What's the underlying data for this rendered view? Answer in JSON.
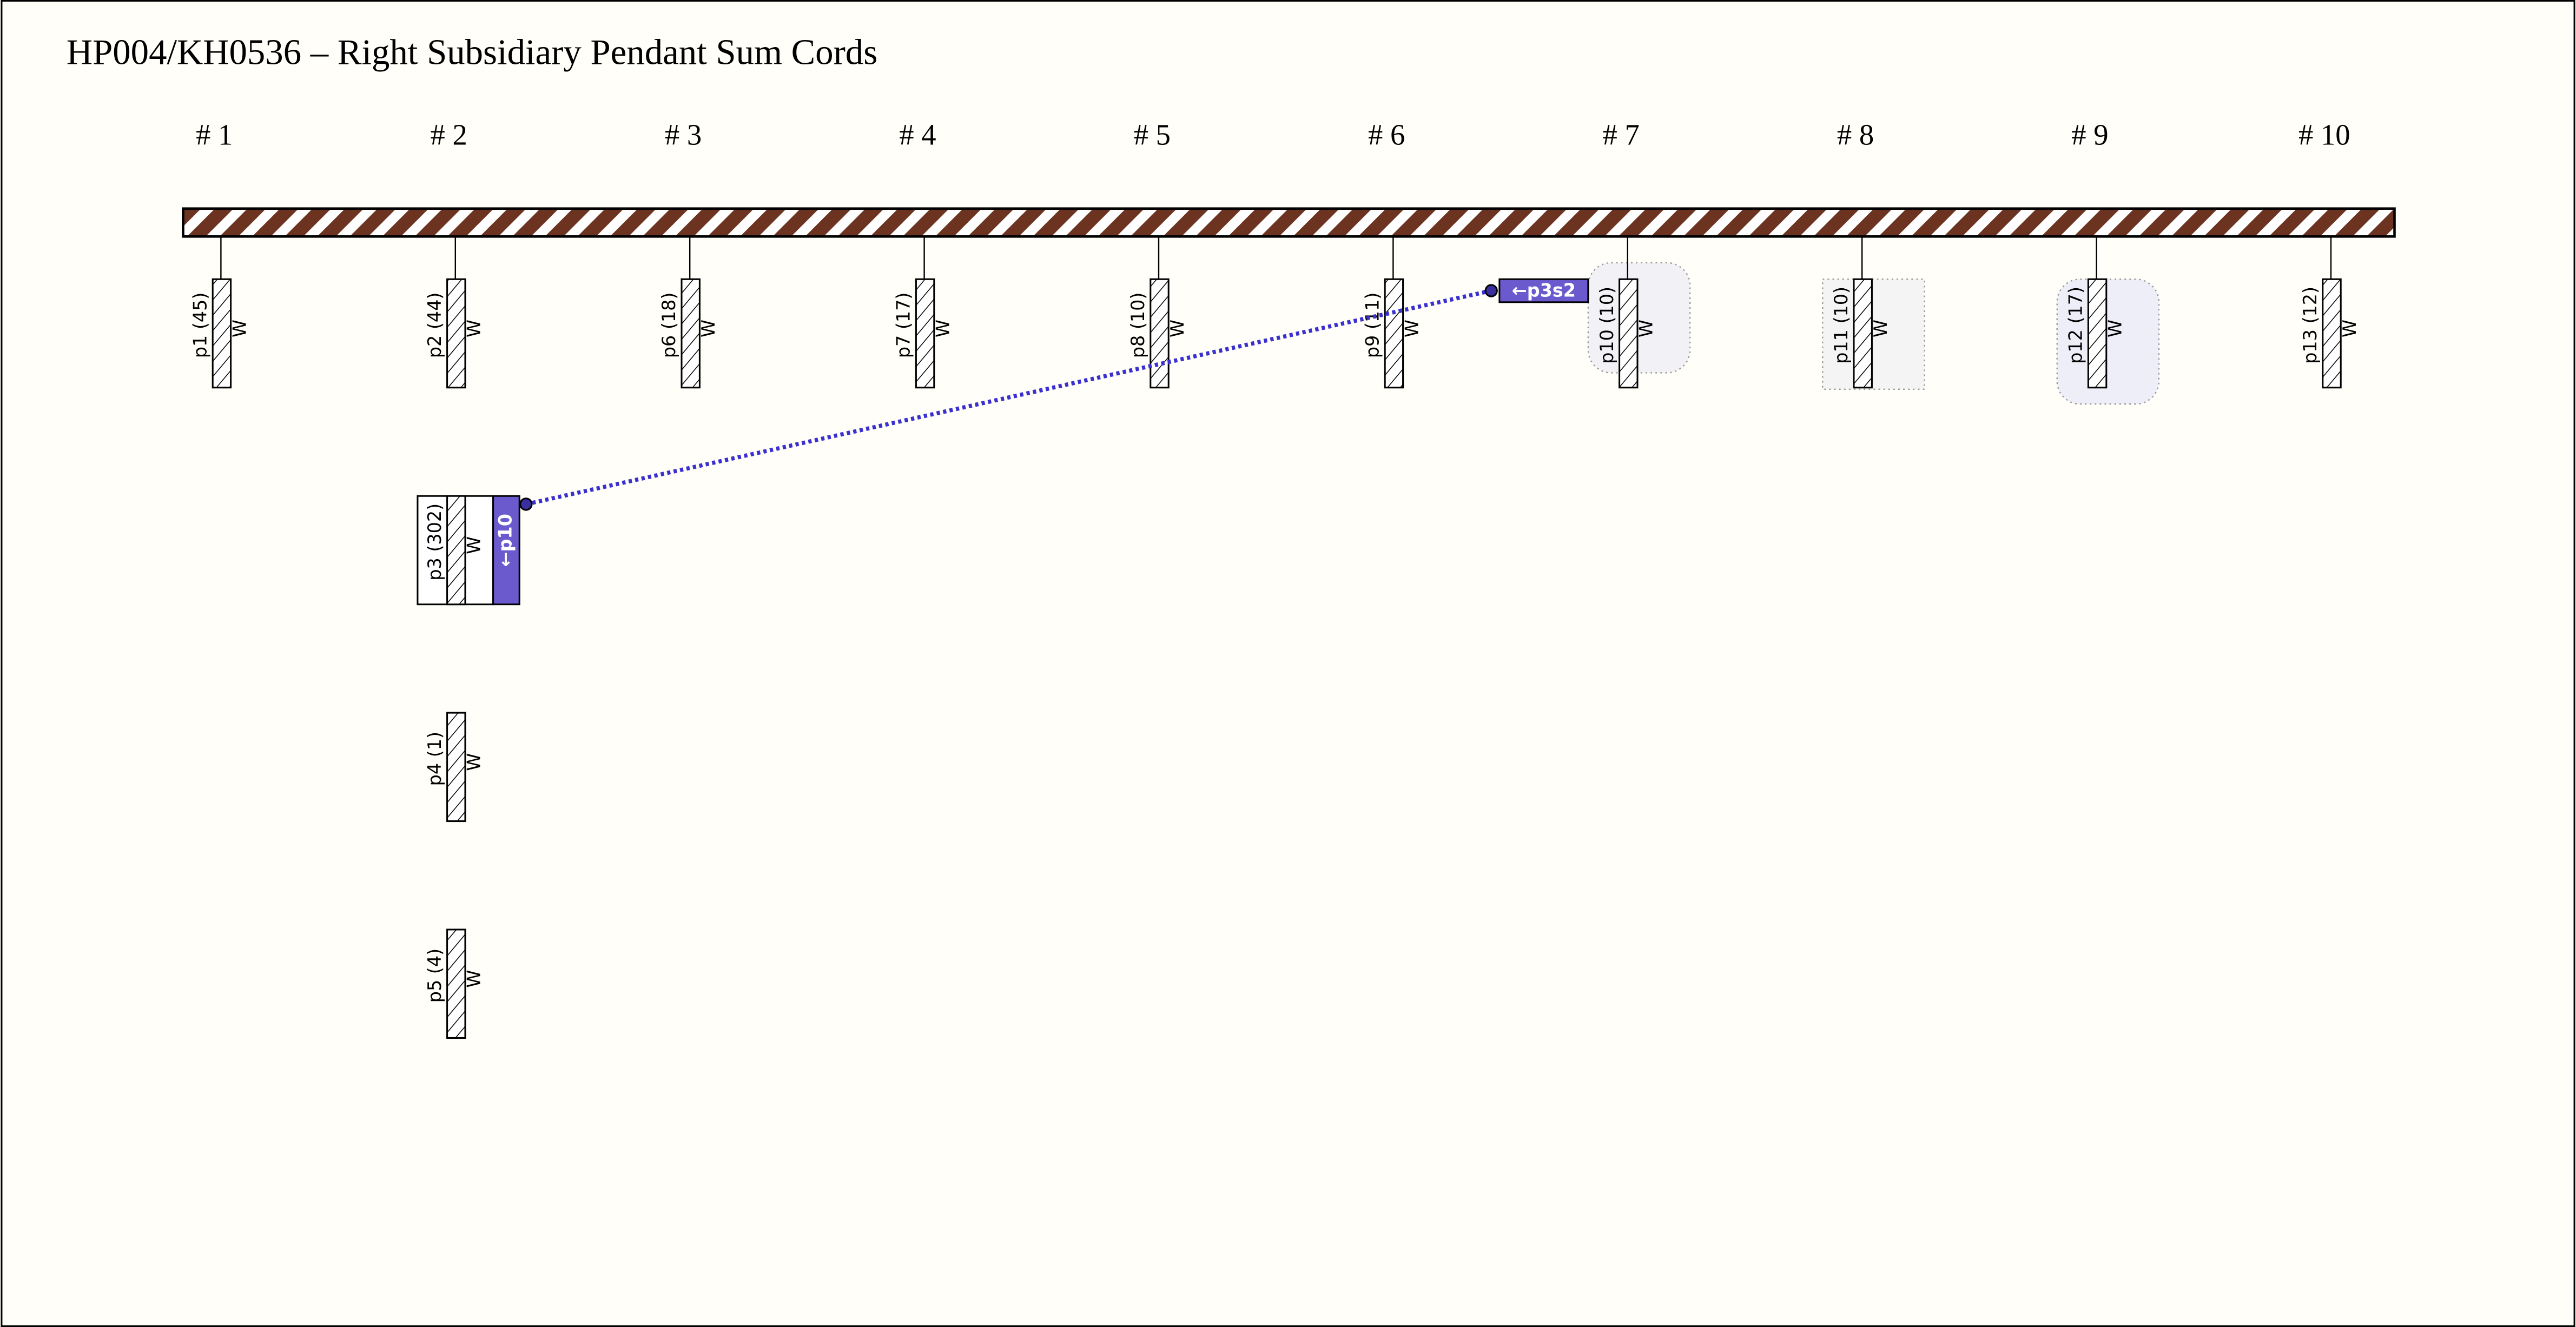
{
  "title": "HP004/KH0536 – Right Subsidiary Pendant Sum Cords",
  "columns": [
    {
      "label": "# 1",
      "cords": [
        {
          "label": "p1 (45)",
          "color": "W"
        }
      ]
    },
    {
      "label": "# 2",
      "cords": [
        {
          "label": "p2 (44)",
          "color": "W"
        },
        {
          "label": "p3 (302)",
          "color": "W",
          "link": "←p10"
        },
        {
          "label": "p4 (1)",
          "color": "W"
        },
        {
          "label": "p5 (4)",
          "color": "W"
        }
      ]
    },
    {
      "label": "# 3",
      "cords": [
        {
          "label": "p6 (18)",
          "color": "W"
        }
      ]
    },
    {
      "label": "# 4",
      "cords": [
        {
          "label": "p7 (17)",
          "color": "W"
        }
      ]
    },
    {
      "label": "# 5",
      "cords": [
        {
          "label": "p8 (10)",
          "color": "W"
        }
      ]
    },
    {
      "label": "# 6",
      "cords": [
        {
          "label": "p9 (11)",
          "color": "W"
        }
      ]
    },
    {
      "label": "# 7",
      "cords": [
        {
          "label": "p10 (10)",
          "color": "W",
          "link": "←p3s2"
        }
      ]
    },
    {
      "label": "# 8",
      "cords": [
        {
          "label": "p11 (10)",
          "color": "W"
        }
      ]
    },
    {
      "label": "# 9",
      "cords": [
        {
          "label": "p12 (17)",
          "color": "W"
        }
      ]
    },
    {
      "label": "# 10",
      "cords": [
        {
          "label": "p13 (12)",
          "color": "W"
        }
      ]
    }
  ]
}
